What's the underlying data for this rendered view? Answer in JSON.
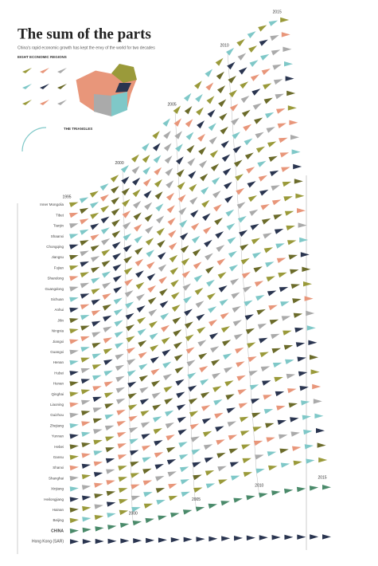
{
  "header": {
    "title": "The sum of the parts",
    "subtitle": "China's rapid economic growth has kept the envy of the world for two decades"
  },
  "legend": {
    "regions_heading": "EIGHT ECONOMIC REGIONS",
    "triangles_heading": "THE TRIANGLES"
  },
  "rows": [
    "Inner Mongolia",
    "Tibet",
    "Tianjin",
    "Shaanxi",
    "Chongqing",
    "Jiangsu",
    "Fujian",
    "Shandong",
    "Guangdong",
    "Sichuan",
    "Anhui",
    "Jilin",
    "Ningxia",
    "Jiangxi",
    "Guangxi",
    "Henan",
    "Hubei",
    "Hunan",
    "Qinghai",
    "Liaoning",
    "Guizhou",
    "Zhejiang",
    "Yunnan",
    "Hebei",
    "Gansu",
    "Shanxi",
    "Shanghai",
    "Xinjiang",
    "Heilongjiang",
    "Hainan",
    "Beijing",
    "CHINA",
    "Hong Kong (SAR)"
  ],
  "top_years": [
    "1995",
    "2000",
    "2005",
    "2010",
    "2015"
  ],
  "bottom_years": [
    "2000",
    "2005",
    "2010",
    "2015"
  ]
}
